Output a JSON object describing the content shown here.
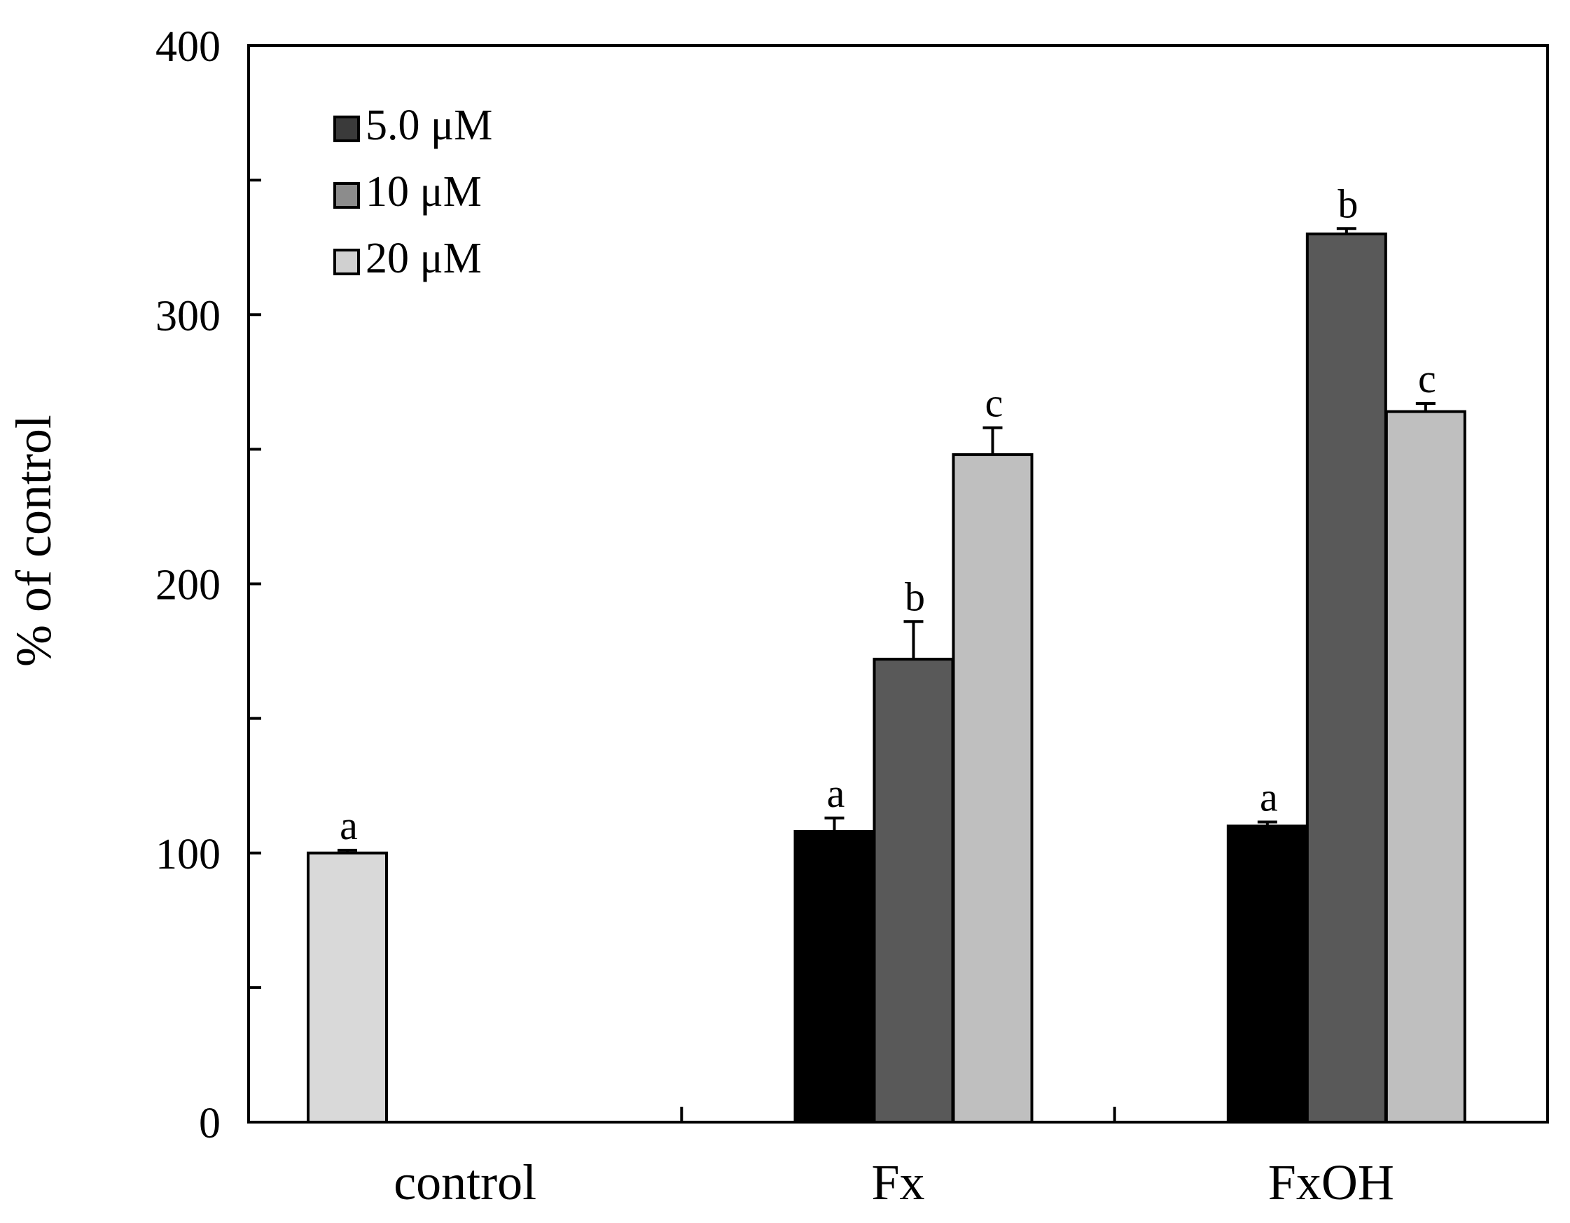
{
  "chart_data": {
    "type": "bar",
    "title": "",
    "xlabel": "",
    "ylabel": "% of control",
    "ylim": [
      0,
      400
    ],
    "yticks": [
      0,
      100,
      200,
      300,
      400
    ],
    "yminor_ticks": [
      50,
      150,
      250,
      350
    ],
    "categories": [
      "control",
      "Fx",
      "FxOH"
    ],
    "legend_position": "top-left",
    "control_bar": {
      "category": "control",
      "value": 100,
      "error": 1,
      "label": "a",
      "color": "#d9d9d9"
    },
    "series": [
      {
        "name": "5.0 μM",
        "color": "#000000",
        "legend_color": "#3a3a3a",
        "values": [
          null,
          108,
          110
        ],
        "errors": [
          null,
          5,
          1.5
        ],
        "labels": [
          null,
          "a",
          "a"
        ]
      },
      {
        "name": "10 μM",
        "color": "#595959",
        "legend_color": "#8c8c8c",
        "values": [
          null,
          172,
          330
        ],
        "errors": [
          null,
          14,
          2
        ],
        "labels": [
          null,
          "b",
          "b"
        ]
      },
      {
        "name": "20 μM",
        "color": "#bfbfbf",
        "legend_color": "#d0d0d0",
        "values": [
          null,
          248,
          264
        ],
        "errors": [
          null,
          10,
          3
        ],
        "labels": [
          null,
          "c",
          "c"
        ]
      }
    ]
  }
}
